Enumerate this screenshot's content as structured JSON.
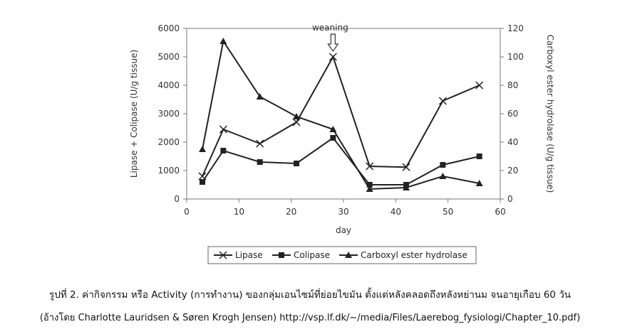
{
  "chart_data": {
    "type": "line",
    "xlabel": "day",
    "ylabel_left": "Lipase + Colipase (U/g tissue)",
    "ylabel_right": "Carboxyl ester hydrolase (U/g tissue)",
    "xlim": [
      0,
      60
    ],
    "ylim_left": [
      0,
      6000
    ],
    "ylim_right": [
      0,
      120
    ],
    "x_ticks": [
      "0",
      "10",
      "20",
      "30",
      "40",
      "50",
      "60"
    ],
    "y_left_ticks": [
      "0",
      "1000",
      "2000",
      "3000",
      "4000",
      "5000",
      "6000"
    ],
    "y_right_ticks": [
      "0",
      "20",
      "40",
      "60",
      "80",
      "100",
      "120"
    ],
    "annotation": "weaning",
    "annotation_x": 28,
    "grid": false,
    "legend_position": "bottom",
    "series": [
      {
        "name": "Lipase",
        "axis": "left",
        "marker": "x",
        "x": [
          3,
          7,
          14,
          21,
          28,
          35,
          42,
          49,
          56
        ],
        "y": [
          800,
          2450,
          1950,
          2700,
          5000,
          1150,
          1120,
          3450,
          4000
        ]
      },
      {
        "name": "Colipase",
        "axis": "left",
        "marker": "square",
        "x": [
          3,
          7,
          14,
          21,
          28,
          35,
          42,
          49,
          56
        ],
        "y": [
          600,
          1700,
          1300,
          1250,
          2150,
          500,
          500,
          1200,
          1500
        ]
      },
      {
        "name": "Carboxyl ester hydrolase",
        "axis": "right",
        "marker": "triangle",
        "x": [
          3,
          7,
          14,
          21,
          28,
          35,
          42,
          49,
          56
        ],
        "y": [
          35,
          111,
          72,
          58,
          49,
          7,
          8,
          16,
          11
        ]
      }
    ]
  },
  "caption": {
    "line1": "รูปที่ 2. ค่ากิจกรรม หรือ Activity (การทำงาน) ของกลุ่มเอนไซม์ที่ย่อยไขมัน ตั้งแต่หลังคลอดถึงหลังหย่านม จนอายุเกือบ 60 วัน",
    "line2": "(อ้างโดย Charlotte Lauridsen & Søren Krogh Jensen) http://vsp.lf.dk/~/media/Files/Laerebog_fysiologi/Chapter_10.pdf)"
  }
}
